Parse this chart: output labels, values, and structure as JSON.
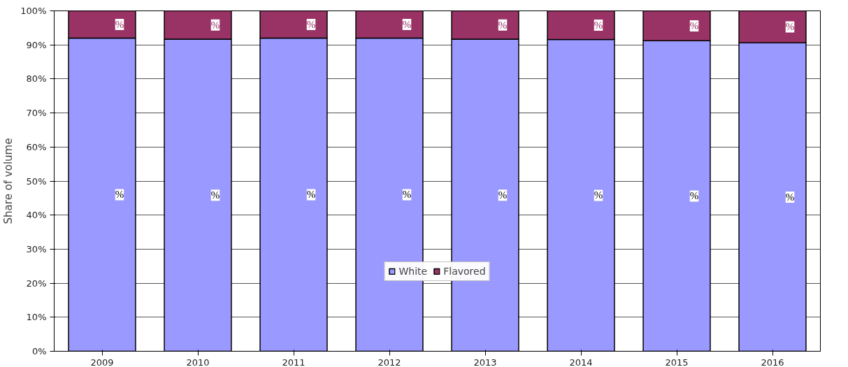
{
  "chart_data": {
    "type": "bar",
    "stacked": true,
    "ylabel": "Share of volume",
    "categories": [
      "2009",
      "2010",
      "2011",
      "2012",
      "2013",
      "2014",
      "2015",
      "2016"
    ],
    "series": [
      {
        "name": "White",
        "color": "#9999ff",
        "values": [
          92.0,
          91.7,
          92.0,
          92.0,
          91.7,
          91.6,
          91.2,
          90.6
        ],
        "value_labels": [
          "%",
          "%",
          "%",
          "%",
          "%",
          "%",
          "%",
          "%"
        ]
      },
      {
        "name": "Flavored",
        "color": "#993366",
        "values": [
          8.0,
          8.3,
          8.0,
          8.0,
          8.3,
          8.4,
          8.8,
          9.4
        ],
        "value_labels": [
          "%",
          "%",
          "%",
          "%",
          "%",
          "%",
          "%",
          "%"
        ]
      }
    ],
    "ylim": [
      0,
      100
    ],
    "yticks": [
      {
        "value": 0,
        "label": "0%"
      },
      {
        "value": 10,
        "label": "10%"
      },
      {
        "value": 20,
        "label": "20%"
      },
      {
        "value": 30,
        "label": "30%"
      },
      {
        "value": 40,
        "label": "40%"
      },
      {
        "value": 50,
        "label": "50%"
      },
      {
        "value": 60,
        "label": "60%"
      },
      {
        "value": 70,
        "label": "70%"
      },
      {
        "value": 80,
        "label": "80%"
      },
      {
        "value": 90,
        "label": "90%"
      },
      {
        "value": 100,
        "label": "100%"
      }
    ],
    "grid": "y",
    "legend": "bottom"
  }
}
